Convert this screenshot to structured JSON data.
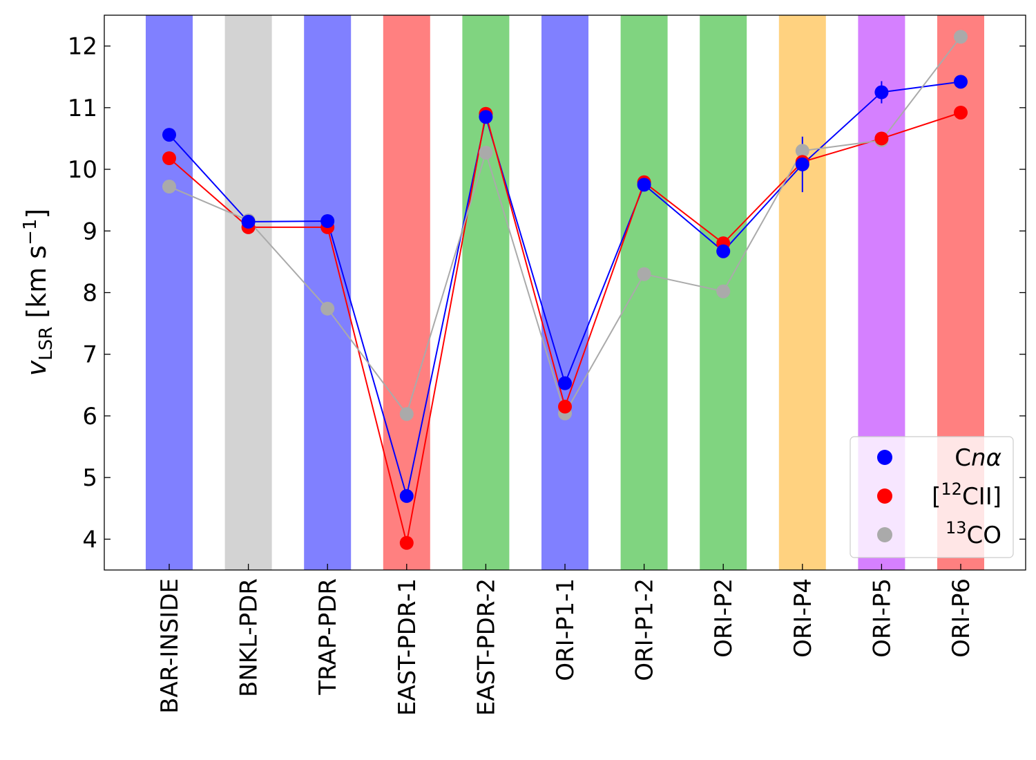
{
  "chart_data": {
    "type": "line",
    "title": "",
    "xlabel": "",
    "ylabel": {
      "main": "v",
      "subscript": "LSR",
      "unit_open": " [km s",
      "unit_exp": "−1",
      "unit_close": "]"
    },
    "ylim": [
      3.5,
      12.5
    ],
    "yticks": [
      4,
      5,
      6,
      7,
      8,
      9,
      10,
      11,
      12
    ],
    "categories": [
      "BAR-INSIDE",
      "BNKL-PDR",
      "TRAP-PDR",
      "EAST-PDR-1",
      "EAST-PDR-2",
      "ORI-P1-1",
      "ORI-P1-2",
      "ORI-P2",
      "ORI-P4",
      "ORI-P5",
      "ORI-P6"
    ],
    "band_colors": [
      "#8080ff",
      "#d3d3d3",
      "#8080ff",
      "#ff8080",
      "#80d480",
      "#8080ff",
      "#80d480",
      "#80d480",
      "#ffd280",
      "#d580ff",
      "#ff8080"
    ],
    "series": [
      {
        "name": "Cnα",
        "legend": {
          "base": "C",
          "italic": "nα",
          "sup": "",
          "rest": ""
        },
        "color": "#0000ff",
        "values": [
          10.56,
          9.15,
          9.16,
          4.7,
          10.85,
          6.53,
          9.75,
          8.67,
          10.08,
          11.25,
          11.42
        ],
        "errors": [
          0,
          0,
          0,
          0,
          0,
          0,
          0,
          0,
          0.45,
          0.18,
          0
        ]
      },
      {
        "name": "[12CII]",
        "legend": {
          "base": "[",
          "italic": "",
          "sup": "12",
          "rest": "CII]"
        },
        "color": "#ff0000",
        "values": [
          10.18,
          9.06,
          9.06,
          3.94,
          10.9,
          6.15,
          9.79,
          8.8,
          10.12,
          10.5,
          10.92
        ],
        "errors": [
          0,
          0,
          0,
          0,
          0,
          0,
          0,
          0,
          0,
          0,
          0
        ]
      },
      {
        "name": "13CO",
        "legend": {
          "base": "",
          "italic": "",
          "sup": "13",
          "rest": "CO"
        },
        "color": "#aaaaaa",
        "values": [
          9.72,
          9.17,
          7.74,
          6.03,
          10.27,
          6.04,
          8.3,
          8.02,
          10.3,
          10.47,
          12.15
        ],
        "errors": [
          0,
          0,
          0,
          0,
          0,
          0,
          0,
          0,
          0,
          0,
          0
        ]
      }
    ],
    "legend_position": "lower-right",
    "grid": false
  }
}
